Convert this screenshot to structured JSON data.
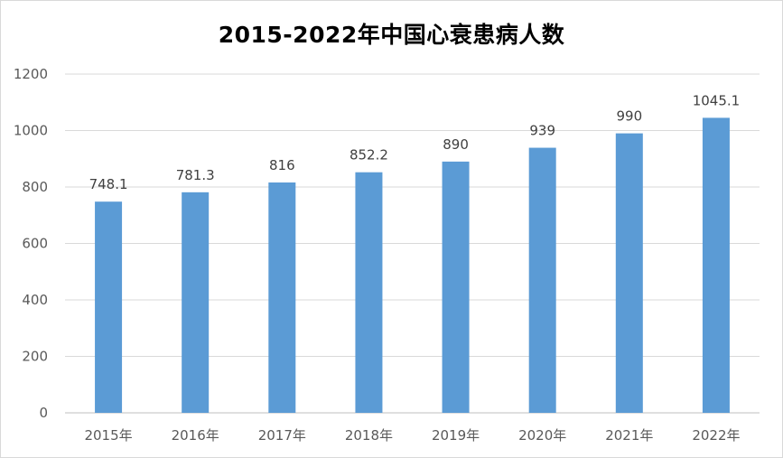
{
  "chart_data": {
    "type": "bar",
    "title": "2015-2022年中国心衰患病人数",
    "xlabel": "",
    "ylabel": "",
    "categories": [
      "2015年",
      "2016年",
      "2017年",
      "2018年",
      "2019年",
      "2020年",
      "2021年",
      "2022年"
    ],
    "values": [
      748.1,
      781.3,
      816,
      852.2,
      890,
      939,
      990,
      1045.1
    ],
    "value_labels": [
      "748.1",
      "781.3",
      "816",
      "852.2",
      "890",
      "939",
      "990",
      "1045.1"
    ],
    "ylim": [
      0,
      1200
    ],
    "yticks": [
      0,
      200,
      400,
      600,
      800,
      1000,
      1200
    ],
    "grid": true,
    "legend": "none",
    "colors": {
      "bar": "#5b9bd5",
      "grid": "#d9d9d9",
      "axis": "#bfbfbf"
    }
  }
}
